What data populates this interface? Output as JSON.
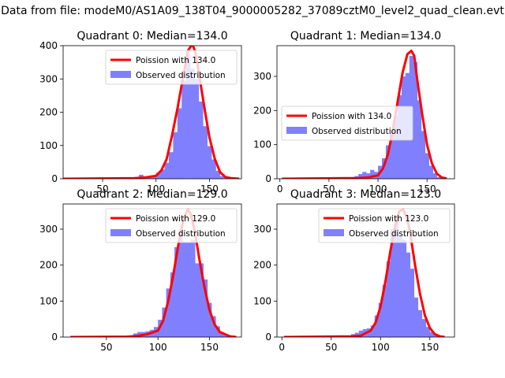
{
  "suptitle": "Data from file: modeM0/AS1A09_138T04_9000005282_37089cztM0_level2_quad_clean.evt",
  "legend_labels": {
    "observed": "Observed distribution"
  },
  "colors": {
    "fit_line": "#ff0000",
    "hist_fill": "#8080ff",
    "axes": "#000000"
  },
  "chart_data": [
    {
      "type": "bar",
      "title": "Quadrant 0: Median=134.0",
      "median": 134.0,
      "fit_label": "Poission with 134.0",
      "legend_placement": "upper-right",
      "xlim": [
        13,
        180
      ],
      "ylim": [
        0,
        400
      ],
      "xticks": [
        50,
        100,
        150
      ],
      "yticks": [
        0,
        100,
        200,
        300,
        400
      ],
      "bin_width": 4,
      "bins": [
        [
          80,
          4
        ],
        [
          84,
          12
        ],
        [
          92,
          6
        ],
        [
          96,
          8
        ],
        [
          100,
          18
        ],
        [
          104,
          28
        ],
        [
          108,
          48
        ],
        [
          112,
          80
        ],
        [
          116,
          140
        ],
        [
          120,
          212
        ],
        [
          124,
          295
        ],
        [
          128,
          375
        ],
        [
          132,
          330
        ],
        [
          136,
          300
        ],
        [
          140,
          232
        ],
        [
          144,
          158
        ],
        [
          148,
          98
        ],
        [
          152,
          58
        ],
        [
          156,
          24
        ],
        [
          160,
          8
        ],
        [
          164,
          2
        ]
      ],
      "fit": [
        [
          13,
          0
        ],
        [
          80,
          2
        ],
        [
          90,
          4
        ],
        [
          100,
          9
        ],
        [
          105,
          25
        ],
        [
          110,
          60
        ],
        [
          115,
          130
        ],
        [
          120,
          210
        ],
        [
          125,
          300
        ],
        [
          130,
          385
        ],
        [
          134,
          405
        ],
        [
          137,
          380
        ],
        [
          140,
          320
        ],
        [
          145,
          220
        ],
        [
          150,
          125
        ],
        [
          155,
          60
        ],
        [
          160,
          20
        ],
        [
          165,
          5
        ],
        [
          170,
          2
        ],
        [
          178,
          0
        ]
      ]
    },
    {
      "type": "bar",
      "title": "Quadrant 1: Median=134.0",
      "median": 134.0,
      "fit_label": "Poission with 134.0",
      "legend_placement": "center-left",
      "xlim": [
        -3,
        178
      ],
      "ylim": [
        0,
        390
      ],
      "xticks": [
        0,
        50,
        100,
        150
      ],
      "yticks": [
        0,
        100,
        200,
        300
      ],
      "bin_width": 4,
      "bins": [
        [
          76,
          8
        ],
        [
          80,
          14
        ],
        [
          84,
          20
        ],
        [
          88,
          16
        ],
        [
          92,
          26
        ],
        [
          96,
          20
        ],
        [
          100,
          38
        ],
        [
          104,
          60
        ],
        [
          108,
          98
        ],
        [
          112,
          135
        ],
        [
          116,
          185
        ],
        [
          120,
          245
        ],
        [
          124,
          300
        ],
        [
          128,
          310
        ],
        [
          132,
          360
        ],
        [
          136,
          342
        ],
        [
          140,
          230
        ],
        [
          144,
          140
        ],
        [
          148,
          75
        ],
        [
          152,
          38
        ],
        [
          156,
          16
        ],
        [
          160,
          5
        ],
        [
          164,
          2
        ]
      ],
      "fit": [
        [
          2,
          0
        ],
        [
          80,
          2
        ],
        [
          90,
          4
        ],
        [
          100,
          10
        ],
        [
          105,
          30
        ],
        [
          110,
          70
        ],
        [
          115,
          140
        ],
        [
          120,
          225
        ],
        [
          125,
          310
        ],
        [
          130,
          365
        ],
        [
          134,
          375
        ],
        [
          137,
          360
        ],
        [
          140,
          290
        ],
        [
          145,
          190
        ],
        [
          150,
          100
        ],
        [
          155,
          45
        ],
        [
          160,
          15
        ],
        [
          165,
          4
        ],
        [
          170,
          1
        ]
      ]
    },
    {
      "type": "bar",
      "title": "Quadrant 2: Median=129.0",
      "median": 129.0,
      "fit_label": "Poission with 129.0",
      "legend_placement": "upper-right",
      "xlim": [
        8,
        181
      ],
      "ylim": [
        0,
        370
      ],
      "xticks": [
        50,
        100,
        150
      ],
      "yticks": [
        0,
        100,
        200,
        300
      ],
      "bin_width": 4,
      "bins": [
        [
          72,
          4
        ],
        [
          76,
          10
        ],
        [
          80,
          14
        ],
        [
          84,
          14
        ],
        [
          88,
          16
        ],
        [
          92,
          20
        ],
        [
          96,
          28
        ],
        [
          100,
          48
        ],
        [
          104,
          82
        ],
        [
          108,
          135
        ],
        [
          112,
          180
        ],
        [
          116,
          250
        ],
        [
          120,
          300
        ],
        [
          124,
          265
        ],
        [
          128,
          265
        ],
        [
          132,
          270
        ],
        [
          136,
          205
        ],
        [
          140,
          205
        ],
        [
          144,
          160
        ],
        [
          148,
          95
        ],
        [
          152,
          58
        ],
        [
          156,
          30
        ],
        [
          160,
          14
        ],
        [
          164,
          6
        ],
        [
          168,
          2
        ]
      ],
      "fit": [
        [
          15,
          0
        ],
        [
          70,
          1
        ],
        [
          80,
          3
        ],
        [
          90,
          8
        ],
        [
          100,
          18
        ],
        [
          105,
          45
        ],
        [
          110,
          100
        ],
        [
          115,
          175
        ],
        [
          120,
          260
        ],
        [
          125,
          330
        ],
        [
          129,
          355
        ],
        [
          132,
          340
        ],
        [
          136,
          290
        ],
        [
          140,
          220
        ],
        [
          145,
          140
        ],
        [
          150,
          75
        ],
        [
          155,
          35
        ],
        [
          160,
          14
        ],
        [
          170,
          2
        ],
        [
          176,
          0
        ]
      ]
    },
    {
      "type": "bar",
      "title": "Quadrant 3: Median=123.0",
      "median": 123.0,
      "fit_label": "Poission with 123.0",
      "legend_placement": "upper-right",
      "xlim": [
        -5,
        175
      ],
      "ylim": [
        0,
        370
      ],
      "xticks": [
        0,
        50,
        100,
        150
      ],
      "yticks": [
        0,
        100,
        200,
        300
      ],
      "bin_width": 4,
      "bins": [
        [
          66,
          4
        ],
        [
          70,
          8
        ],
        [
          74,
          12
        ],
        [
          78,
          18
        ],
        [
          82,
          22
        ],
        [
          86,
          24
        ],
        [
          90,
          32
        ],
        [
          94,
          60
        ],
        [
          98,
          95
        ],
        [
          102,
          145
        ],
        [
          106,
          210
        ],
        [
          110,
          300
        ],
        [
          114,
          320
        ],
        [
          118,
          280
        ],
        [
          122,
          270
        ],
        [
          126,
          235
        ],
        [
          130,
          190
        ],
        [
          134,
          110
        ],
        [
          138,
          75
        ],
        [
          142,
          50
        ],
        [
          146,
          28
        ],
        [
          150,
          14
        ],
        [
          154,
          6
        ],
        [
          158,
          2
        ]
      ],
      "fit": [
        [
          2,
          0
        ],
        [
          70,
          2
        ],
        [
          80,
          4
        ],
        [
          90,
          18
        ],
        [
          95,
          40
        ],
        [
          100,
          85
        ],
        [
          105,
          155
        ],
        [
          110,
          240
        ],
        [
          115,
          310
        ],
        [
          119,
          350
        ],
        [
          123,
          355
        ],
        [
          127,
          330
        ],
        [
          130,
          290
        ],
        [
          135,
          200
        ],
        [
          140,
          120
        ],
        [
          145,
          60
        ],
        [
          150,
          25
        ],
        [
          155,
          8
        ],
        [
          160,
          2
        ],
        [
          165,
          0
        ]
      ]
    }
  ]
}
